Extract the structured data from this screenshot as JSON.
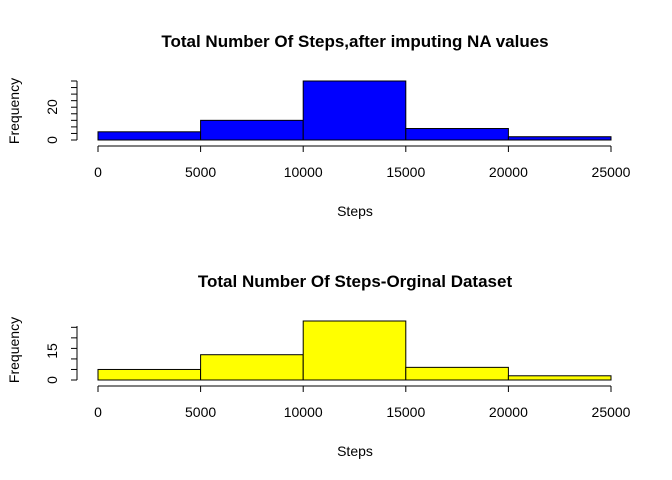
{
  "chart_data": [
    {
      "type": "bar",
      "title": "Total Number Of Steps,after imputing NA values",
      "xlabel": "Steps",
      "ylabel": "Frequency",
      "bins": [
        [
          0,
          5000
        ],
        [
          5000,
          10000
        ],
        [
          10000,
          15000
        ],
        [
          15000,
          20000
        ],
        [
          20000,
          25000
        ]
      ],
      "values": [
        5,
        12,
        36,
        7,
        2
      ],
      "xticks": [
        "0",
        "5000",
        "10000",
        "15000",
        "20000",
        "25000"
      ],
      "yticks": [
        "0",
        "20"
      ],
      "xlim": [
        0,
        25000
      ],
      "ylim": [
        0,
        36
      ],
      "color": "#0000ff"
    },
    {
      "type": "bar",
      "title": "Total Number Of Steps-Orginal Dataset",
      "xlabel": "Steps",
      "ylabel": "Frequency",
      "bins": [
        [
          0,
          5000
        ],
        [
          5000,
          10000
        ],
        [
          10000,
          15000
        ],
        [
          15000,
          20000
        ],
        [
          20000,
          25000
        ]
      ],
      "values": [
        5,
        12,
        28,
        6,
        2
      ],
      "xticks": [
        "0",
        "5000",
        "10000",
        "15000",
        "20000",
        "25000"
      ],
      "yticks": [
        "0",
        "15"
      ],
      "xlim": [
        0,
        25000
      ],
      "ylim": [
        0,
        28
      ],
      "color": "#ffff00"
    }
  ]
}
